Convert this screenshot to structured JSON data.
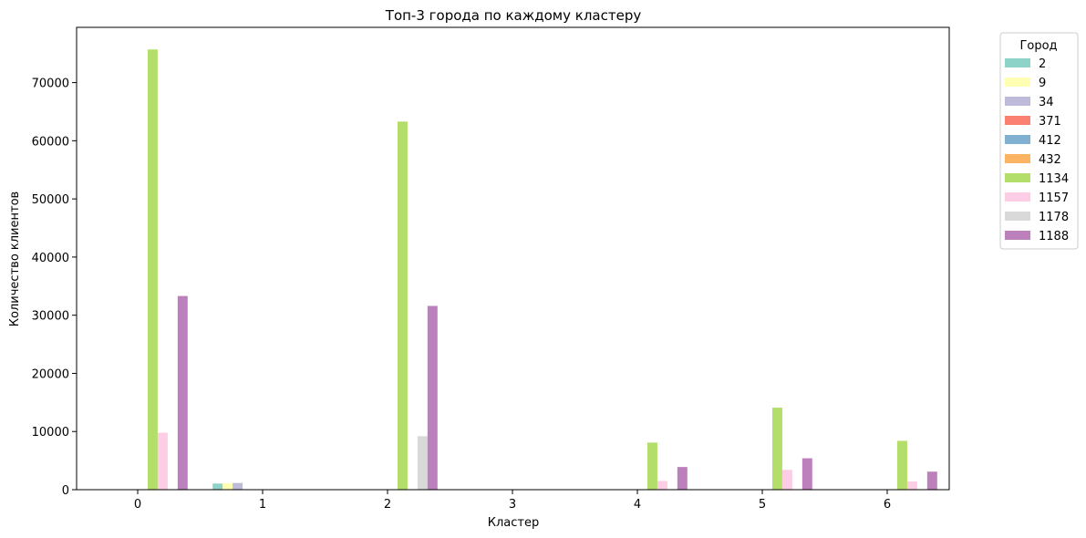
{
  "chart_data": {
    "type": "bar",
    "title": "Топ-3 города по каждому кластеру",
    "xlabel": "Кластер",
    "ylabel": "Количество клиентов",
    "categories": [
      "0",
      "1",
      "2",
      "3",
      "4",
      "5",
      "6"
    ],
    "ylim": [
      0,
      79500
    ],
    "yticks": [
      0,
      10000,
      20000,
      30000,
      40000,
      50000,
      60000,
      70000
    ],
    "legend": {
      "title": "Город",
      "placement": "outside-top-right"
    },
    "grid": false,
    "series": [
      {
        "name": "2",
        "color": "#8dd3c7",
        "values": [
          null,
          1050,
          null,
          null,
          null,
          null,
          null
        ]
      },
      {
        "name": "9",
        "color": "#ffffb3",
        "values": [
          null,
          1100,
          null,
          null,
          null,
          null,
          null
        ]
      },
      {
        "name": "34",
        "color": "#bebada",
        "values": [
          null,
          1150,
          null,
          null,
          null,
          null,
          null
        ]
      },
      {
        "name": "371",
        "color": "#fb8072",
        "values": [
          null,
          null,
          null,
          null,
          null,
          null,
          null
        ]
      },
      {
        "name": "412",
        "color": "#80b1d3",
        "values": [
          null,
          null,
          null,
          null,
          null,
          null,
          null
        ]
      },
      {
        "name": "432",
        "color": "#fdb462",
        "values": [
          null,
          null,
          null,
          null,
          null,
          null,
          null
        ]
      },
      {
        "name": "1134",
        "color": "#b3de69",
        "values": [
          75700,
          null,
          63300,
          null,
          8100,
          14100,
          8400
        ]
      },
      {
        "name": "1157",
        "color": "#fccde5",
        "values": [
          9800,
          null,
          null,
          null,
          1500,
          3400,
          1400
        ]
      },
      {
        "name": "1178",
        "color": "#d9d9d9",
        "values": [
          null,
          null,
          9200,
          null,
          null,
          null,
          null
        ]
      },
      {
        "name": "1188",
        "color": "#bc80bd",
        "values": [
          33300,
          null,
          31600,
          null,
          3900,
          5400,
          3100
        ]
      }
    ]
  }
}
